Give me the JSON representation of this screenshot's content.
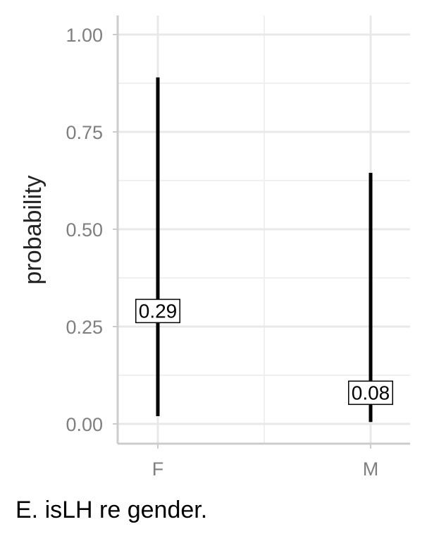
{
  "chart_data": {
    "type": "errorbar",
    "ylabel": "probability",
    "categories": [
      "F",
      "M"
    ],
    "y_ticks": [
      "0.00",
      "0.25",
      "0.50",
      "0.75",
      "1.00"
    ],
    "ylim": [
      -0.05,
      1.05
    ],
    "grid": true,
    "points": [
      {
        "category": "F",
        "estimate": 0.29,
        "lower": 0.02,
        "upper": 0.89,
        "label": "0.29"
      },
      {
        "category": "M",
        "estimate": 0.08,
        "lower": 0.005,
        "upper": 0.645,
        "label": "0.08"
      }
    ]
  },
  "caption": "E. isLH re gender."
}
